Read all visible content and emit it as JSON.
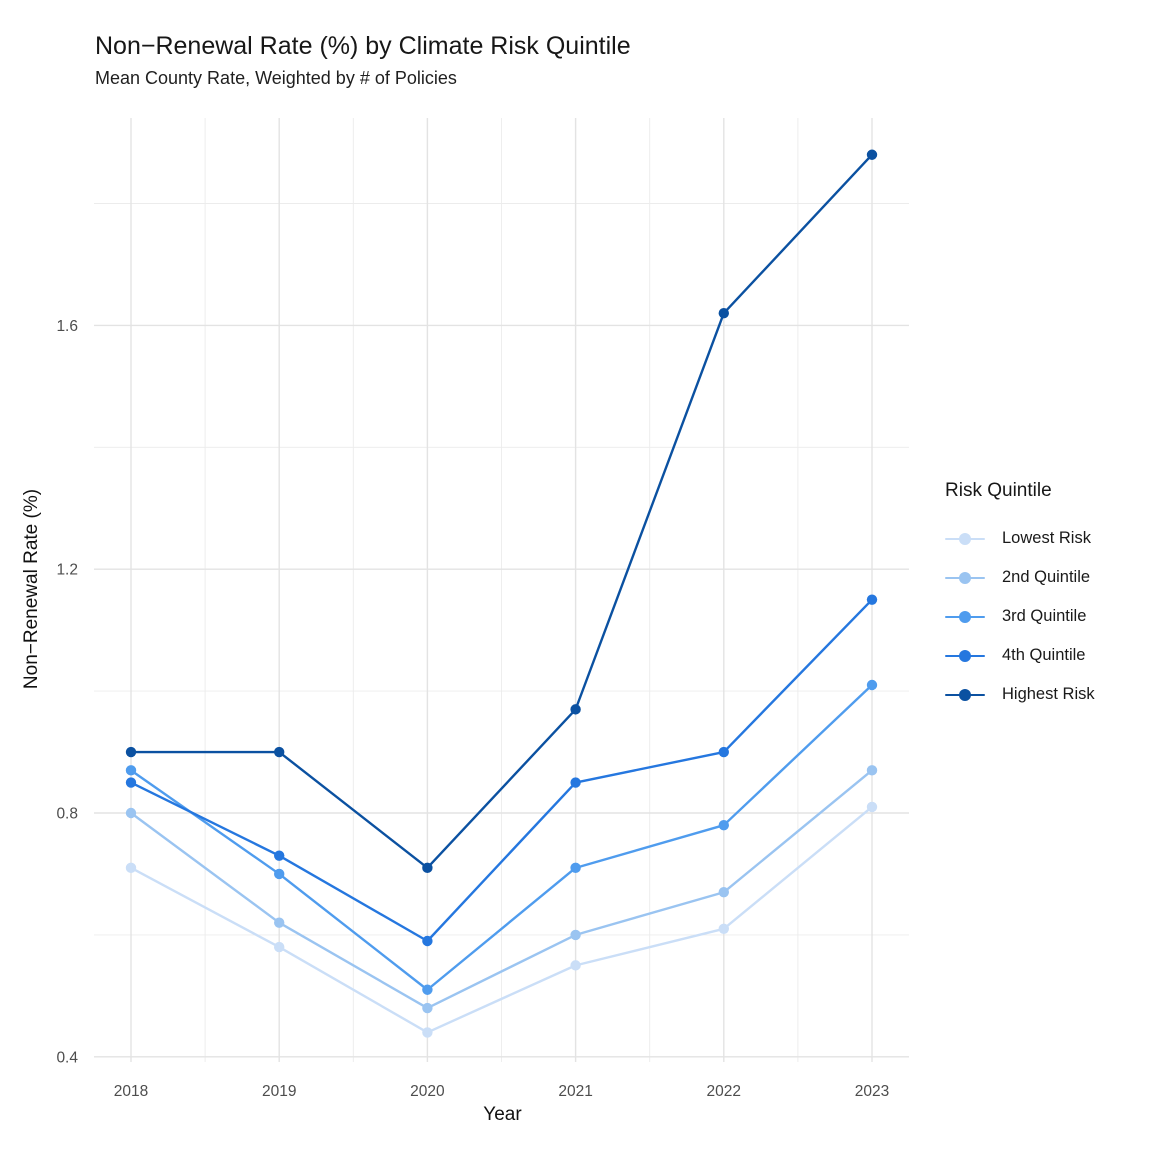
{
  "chart_data": {
    "type": "line",
    "title": "Non−Renewal Rate (%) by Climate Risk Quintile",
    "subtitle": "Mean County Rate, Weighted by # of Policies",
    "xlabel": "Year",
    "ylabel": "Non−Renewal Rate (%)",
    "legend_title": "Risk Quintile",
    "legend_position": "right",
    "grid": true,
    "background": "#ffffff",
    "gridline_major_color": "#e3e3e3",
    "gridline_minor_color": "#ececec",
    "tick_label_color": "#4d4d4d",
    "x": [
      2018,
      2019,
      2020,
      2021,
      2022,
      2023
    ],
    "xlim": [
      2017.75,
      2023.25
    ],
    "ylim": [
      0.39,
      1.94
    ],
    "yticks": [
      0.4,
      0.8,
      1.2,
      1.6
    ],
    "yminor": [
      0.6,
      1.0,
      1.4,
      1.8
    ],
    "xminor": [
      2018.5,
      2019.5,
      2020.5,
      2021.5,
      2022.5
    ],
    "series": [
      {
        "name": "Lowest Risk",
        "color": "#cadef7",
        "values": [
          0.71,
          0.58,
          0.44,
          0.55,
          0.61,
          0.81
        ]
      },
      {
        "name": "2nd Quintile",
        "color": "#9ac4f1",
        "values": [
          0.8,
          0.62,
          0.48,
          0.6,
          0.67,
          0.87
        ]
      },
      {
        "name": "3rd Quintile",
        "color": "#4f9cee",
        "values": [
          0.87,
          0.7,
          0.51,
          0.71,
          0.78,
          1.01
        ]
      },
      {
        "name": "4th Quintile",
        "color": "#2577df",
        "values": [
          0.85,
          0.73,
          0.59,
          0.85,
          0.9,
          1.15
        ]
      },
      {
        "name": "Highest Risk",
        "color": "#0b51a1",
        "values": [
          0.9,
          0.9,
          0.71,
          0.97,
          1.62,
          1.88
        ]
      }
    ]
  }
}
